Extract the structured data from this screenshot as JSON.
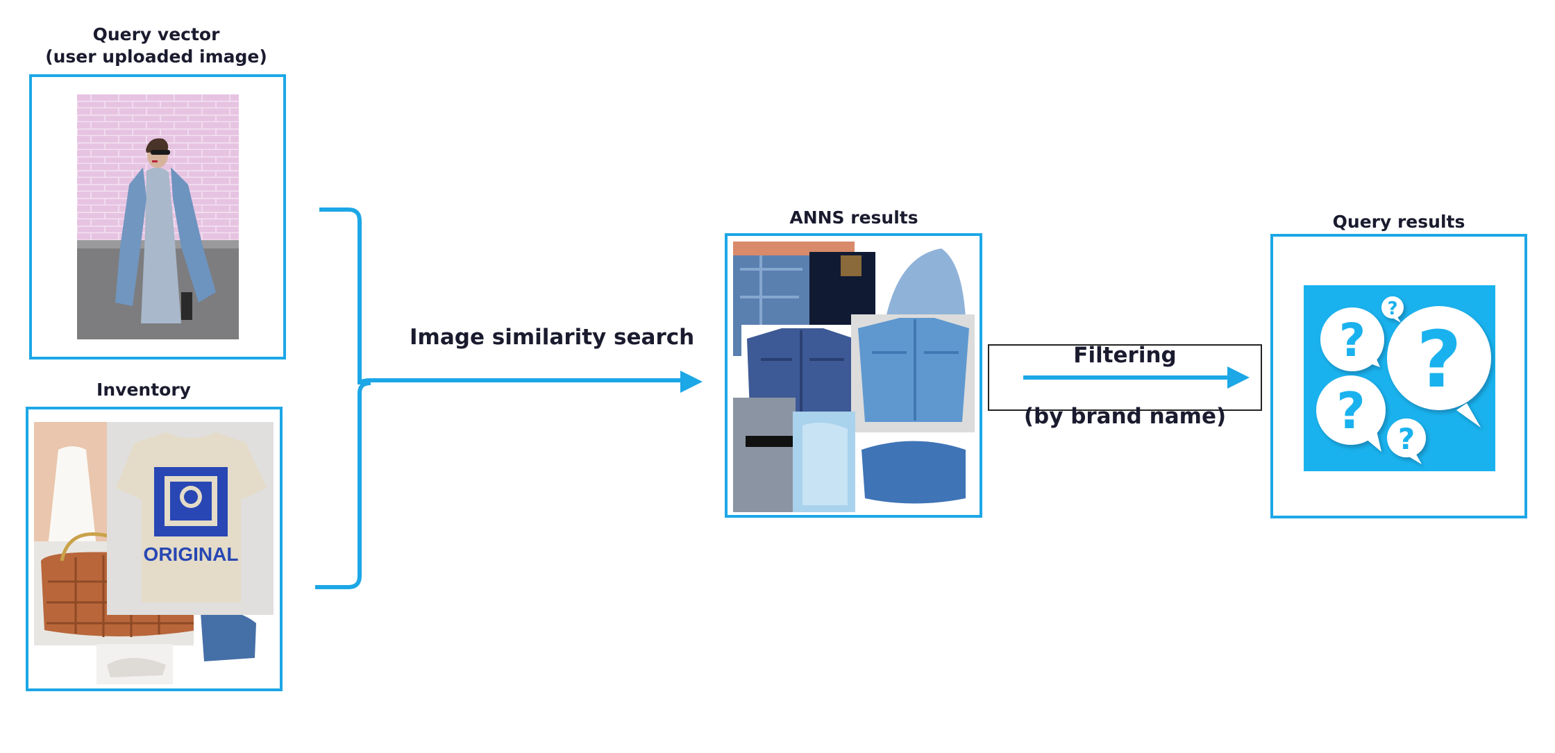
{
  "query_vector": {
    "title_line1": "Query vector",
    "title_line2": "(user uploaded image)"
  },
  "inventory": {
    "title": "Inventory",
    "tshirt_text": "ORIGINAL"
  },
  "search": {
    "label": "Image similarity search"
  },
  "anns": {
    "title": "ANNS results"
  },
  "filtering": {
    "label": "Filtering",
    "sublabel": "(by brand name)"
  },
  "query_results": {
    "title": "Query results"
  },
  "colors": {
    "accent": "#1ca7e6",
    "text": "#1b1b2f",
    "question_bg": "#1ab2ee"
  },
  "icons": [
    "woman-in-denim-jacket-photo",
    "fashion-collage",
    "denim-jackets-collage",
    "question-bubbles-icon"
  ]
}
